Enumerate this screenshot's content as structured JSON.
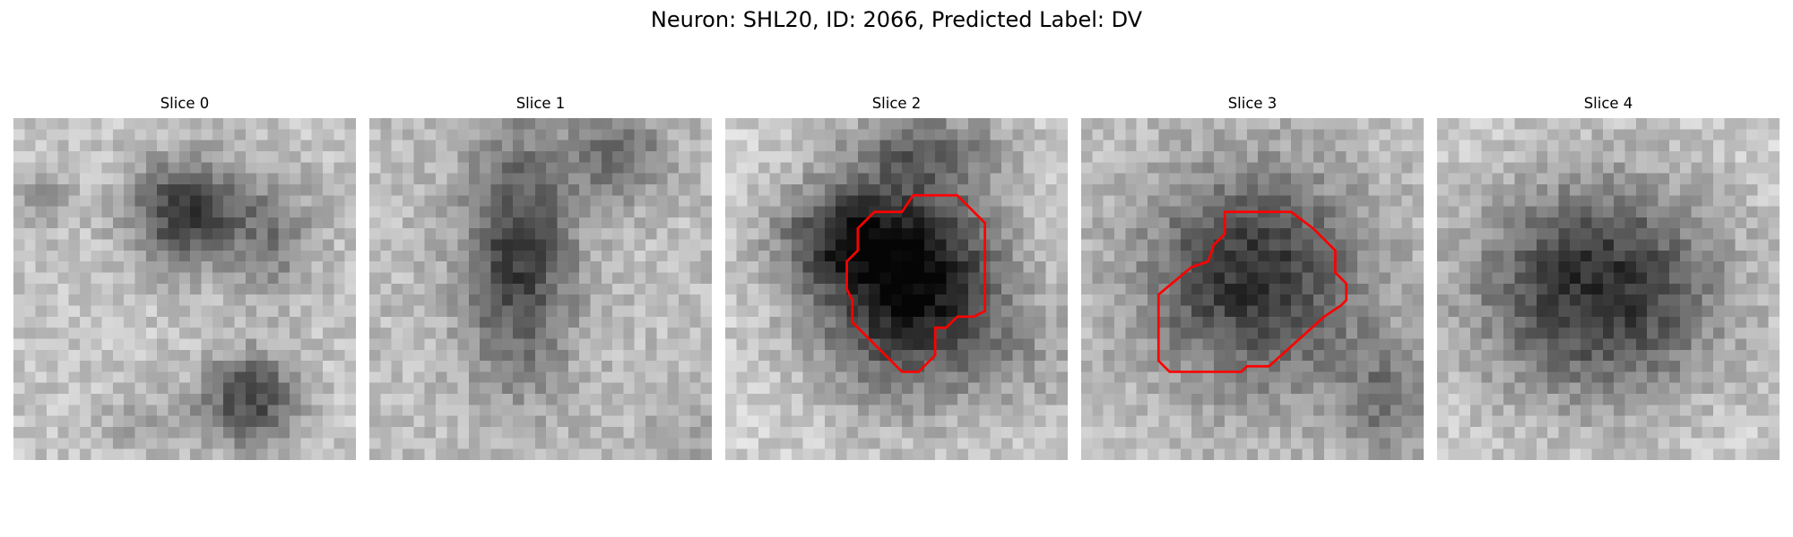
{
  "figure": {
    "title": "Neuron: SHL20, ID: 2066, Predicted Label: DV",
    "roi_color": "#ff0000",
    "panels": [
      {
        "title": "Slice 0",
        "has_roi": false
      },
      {
        "title": "Slice 1",
        "has_roi": false
      },
      {
        "title": "Slice 2",
        "has_roi": true
      },
      {
        "title": "Slice 3",
        "has_roi": true
      },
      {
        "title": "Slice 4",
        "has_roi": false
      }
    ]
  }
}
